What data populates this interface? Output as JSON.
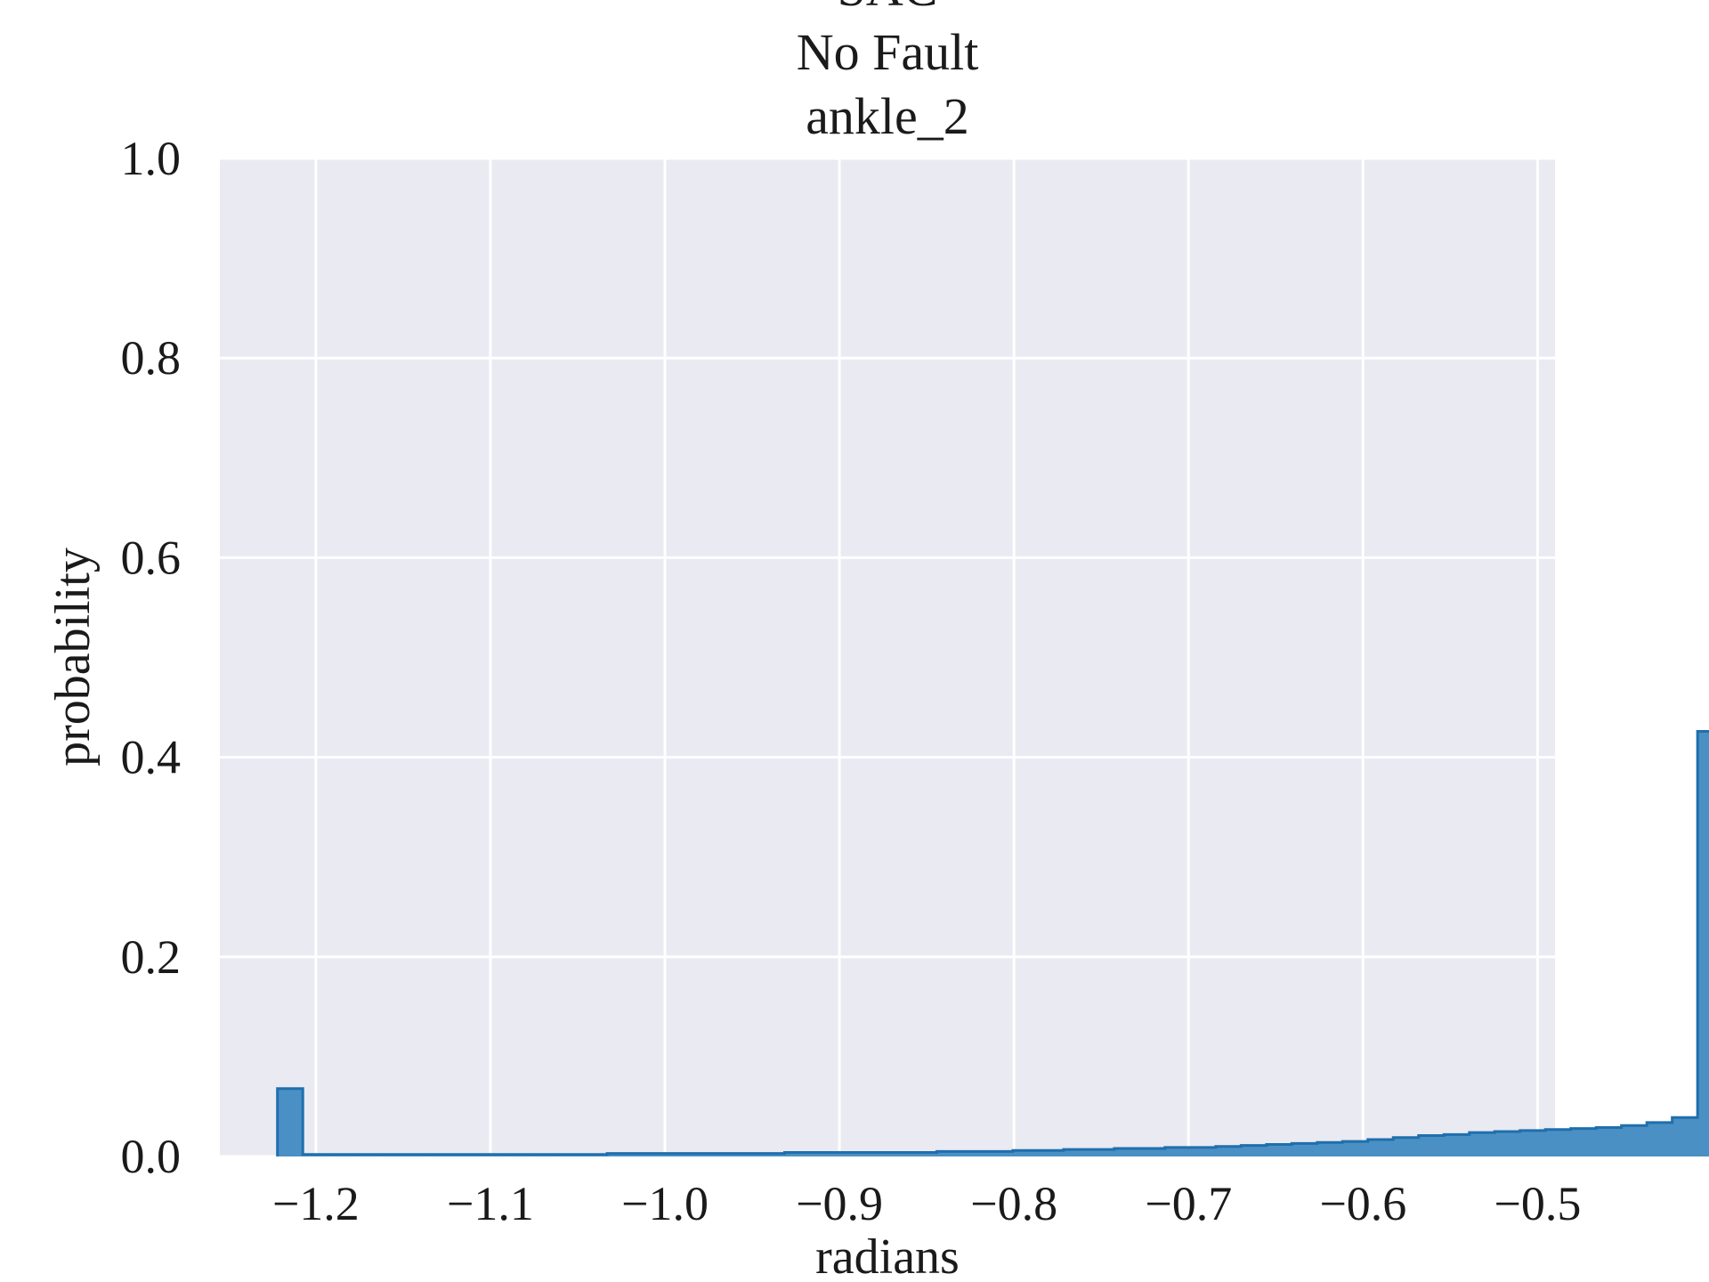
{
  "chart_data": {
    "type": "bar",
    "title_lines": [
      "SAC",
      "No Fault",
      "ankle_2"
    ],
    "xlabel": "radians",
    "ylabel": "probability",
    "xlim": [
      -1.255,
      -0.49
    ],
    "ylim": [
      0.0,
      1.0
    ],
    "x_ticks": [
      -1.2,
      -1.1,
      -1.0,
      -0.9,
      -0.8,
      -0.7,
      -0.6,
      -0.5
    ],
    "x_tick_labels": [
      "−1.2",
      "−1.1",
      "−1.0",
      "−0.9",
      "−0.8",
      "−0.7",
      "−0.6",
      "−0.5"
    ],
    "y_ticks": [
      0.0,
      0.2,
      0.4,
      0.6,
      0.8,
      1.0
    ],
    "y_tick_labels": [
      "0.0",
      "0.2",
      "0.4",
      "0.6",
      "0.8",
      "1.0"
    ],
    "grid": true,
    "bin_start": -1.222,
    "bin_width": 0.01453,
    "values": [
      0.068,
      0.002,
      0.002,
      0.002,
      0.002,
      0.002,
      0.002,
      0.002,
      0.002,
      0.002,
      0.002,
      0.002,
      0.002,
      0.003,
      0.003,
      0.003,
      0.003,
      0.003,
      0.003,
      0.003,
      0.004,
      0.004,
      0.004,
      0.004,
      0.004,
      0.004,
      0.005,
      0.005,
      0.005,
      0.006,
      0.006,
      0.007,
      0.007,
      0.008,
      0.008,
      0.009,
      0.009,
      0.01,
      0.011,
      0.012,
      0.013,
      0.014,
      0.015,
      0.017,
      0.019,
      0.021,
      0.022,
      0.024,
      0.025,
      0.026,
      0.027,
      0.028,
      0.029,
      0.031,
      0.034,
      0.039,
      0.426
    ],
    "colors": {
      "background": "#eaeaf2",
      "grid": "#ffffff",
      "fill": "#4a90c4",
      "edge": "#1f6fad"
    }
  }
}
